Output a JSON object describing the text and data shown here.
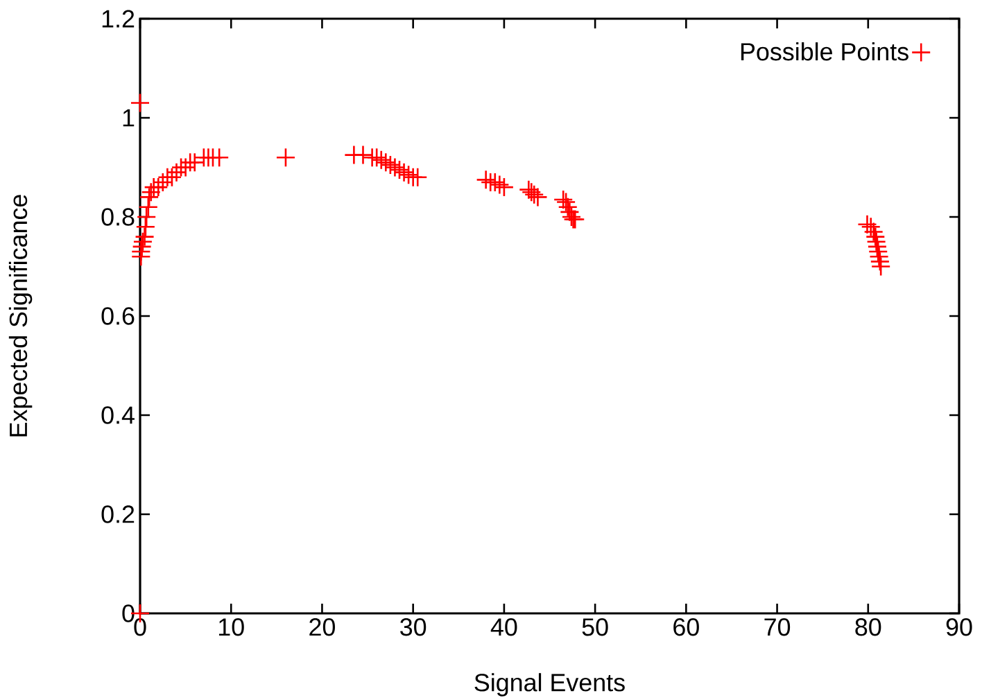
{
  "chart_data": {
    "type": "scatter",
    "xlabel": "Signal Events",
    "ylabel": "Expected Significance",
    "xlim": [
      0,
      90
    ],
    "ylim": [
      0,
      1.2
    ],
    "xticks": [
      0,
      10,
      20,
      30,
      40,
      50,
      60,
      70,
      80,
      90
    ],
    "yticks": [
      0,
      0.2,
      0.4,
      0.6,
      0.8,
      1,
      1.2
    ],
    "grid": false,
    "legend": "top right",
    "marker": "cross",
    "x": [
      0,
      0,
      0.1,
      0.1,
      0.2,
      0.3,
      0.5,
      0.6,
      0.7,
      0.9,
      1,
      1.2,
      1.5,
      2,
      2.5,
      3,
      3.5,
      4,
      4.5,
      5,
      5.5,
      6,
      7,
      7.5,
      8,
      8.7,
      16,
      23.5,
      24.5,
      25.5,
      26,
      26.5,
      27,
      27.5,
      28,
      28.5,
      29,
      29.5,
      30,
      30.5,
      38,
      38.5,
      39,
      39.5,
      40,
      42.7,
      43,
      43.3,
      43.7,
      46.5,
      46.8,
      47,
      47.2,
      47.4,
      47.6,
      47.8,
      79.9,
      80.3,
      80.6,
      80.8,
      80.9,
      81,
      81.1,
      81.2,
      81.3,
      81.4
    ],
    "series": [
      {
        "name": "Possible Points",
        "color": "#ff0000",
        "values": [
          0,
          1.03,
          0.72,
          0.73,
          0.74,
          0.75,
          0.76,
          0.78,
          0.8,
          0.82,
          0.84,
          0.85,
          0.86,
          0.86,
          0.87,
          0.88,
          0.88,
          0.89,
          0.9,
          0.9,
          0.91,
          0.91,
          0.92,
          0.92,
          0.92,
          0.92,
          0.92,
          0.925,
          0.925,
          0.92,
          0.92,
          0.915,
          0.91,
          0.905,
          0.9,
          0.895,
          0.89,
          0.885,
          0.88,
          0.88,
          0.875,
          0.87,
          0.87,
          0.865,
          0.86,
          0.855,
          0.85,
          0.845,
          0.84,
          0.835,
          0.83,
          0.82,
          0.81,
          0.8,
          0.795,
          0.795,
          0.785,
          0.78,
          0.77,
          0.76,
          0.75,
          0.74,
          0.73,
          0.72,
          0.71,
          0.7
        ]
      }
    ]
  }
}
